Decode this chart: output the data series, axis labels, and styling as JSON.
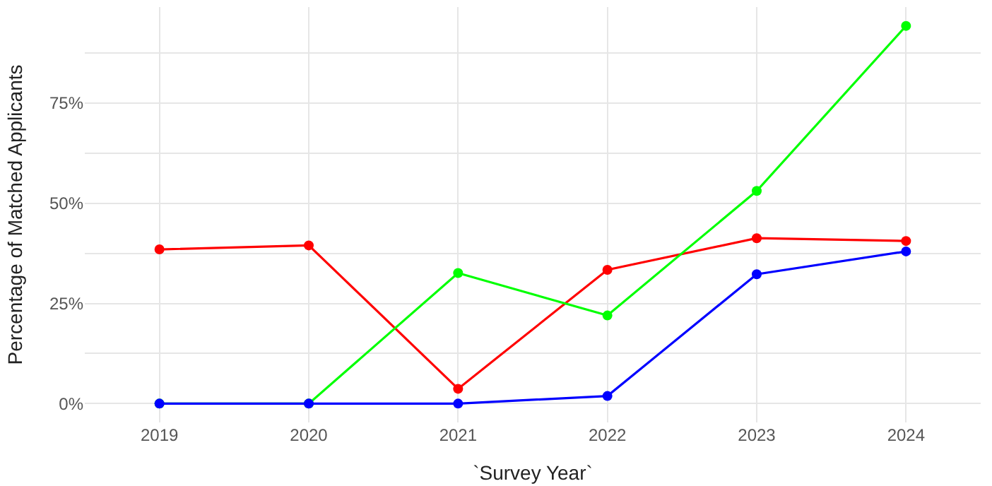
{
  "chart_data": {
    "type": "line",
    "xlabel": "`Survey Year`",
    "ylabel": "Percentage of Matched Applicants",
    "x": [
      2019,
      2020,
      2021,
      2022,
      2023,
      2024
    ],
    "series": [
      {
        "color": "#ff0000",
        "values": [
          38.5,
          39.5,
          3.7,
          33.4,
          41.3,
          40.6
        ]
      },
      {
        "color": "#00ff00",
        "values": [
          0,
          0,
          32.6,
          22.0,
          53.1,
          94.3
        ]
      },
      {
        "color": "#0000ff",
        "values": [
          0,
          0,
          0,
          1.9,
          32.3,
          38.0
        ]
      }
    ],
    "xlim": [
      2018.5,
      2024.5
    ],
    "xticks": [
      2019,
      2020,
      2021,
      2022,
      2023,
      2024
    ],
    "ylim": [
      -4.7,
      99
    ],
    "yticks": [
      {
        "value": 0,
        "label": "0%"
      },
      {
        "value": 12.5,
        "label": null
      },
      {
        "value": 25,
        "label": "25%"
      },
      {
        "value": 37.5,
        "label": null
      },
      {
        "value": 50,
        "label": "50%"
      },
      {
        "value": 62.5,
        "label": null
      },
      {
        "value": 75,
        "label": "75%"
      },
      {
        "value": 87.5,
        "label": null
      }
    ],
    "grid": true,
    "legend": false,
    "marker": "circle",
    "line_style": "solid"
  }
}
